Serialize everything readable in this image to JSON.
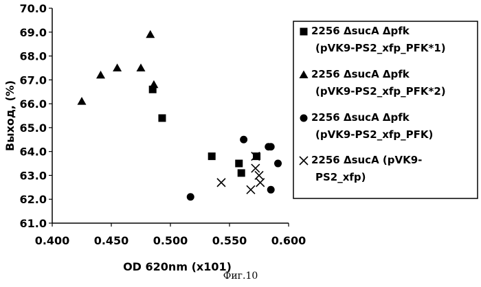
{
  "chart_data": {
    "type": "scatter",
    "xlabel": "OD 620nm (x101)",
    "ylabel": "Выход, (%)",
    "xlim": [
      0.4,
      0.6
    ],
    "ylim": [
      61.0,
      70.0
    ],
    "x_ticks": [
      "0.400",
      "0.450",
      "0.500",
      "0.550",
      "0.600"
    ],
    "y_ticks": [
      "61.0",
      "62.0",
      "63.0",
      "64.0",
      "65.0",
      "66.0",
      "67.0",
      "68.0",
      "69.0",
      "70.0"
    ],
    "grid": false,
    "legend_position": "right",
    "series": [
      {
        "name": "2256 ΔsucA Δpfk (pVK9-PS2_xfp_PFK*1)",
        "legend_lines": [
          "2256 ΔsucA Δpfk",
          "(pVK9-PS2_xfp_PFK*1)"
        ],
        "marker": "square",
        "x": [
          0.485,
          0.493,
          0.535,
          0.558,
          0.56,
          0.573
        ],
        "y": [
          66.6,
          65.4,
          63.8,
          63.5,
          63.1,
          63.8
        ]
      },
      {
        "name": "2256 ΔsucA Δpfk (pVK9-PS2_xfp_PFK*2)",
        "legend_lines": [
          "2256 ΔsucA Δpfk",
          "(pVK9-PS2_xfp_PFK*2)"
        ],
        "marker": "triangle",
        "x": [
          0.425,
          0.441,
          0.455,
          0.475,
          0.483,
          0.486
        ],
        "y": [
          66.1,
          67.2,
          67.5,
          67.5,
          68.9,
          66.8
        ]
      },
      {
        "name": "2256 ΔsucA Δpfk (pVK9-PS2_xfp_PFK)",
        "legend_lines": [
          "2256 ΔsucA Δpfk",
          "(pVK9-PS2_xfp_PFK)"
        ],
        "marker": "circle",
        "x": [
          0.517,
          0.562,
          0.583,
          0.585,
          0.585,
          0.591
        ],
        "y": [
          62.1,
          64.5,
          64.2,
          64.2,
          62.4,
          63.5
        ]
      },
      {
        "name": "2256 ΔsucA (pVK9-PS2_xfp)",
        "legend_lines": [
          "2256 ΔsucA (pVK9-",
          "PS2_xfp)"
        ],
        "marker": "cross",
        "x": [
          0.543,
          0.568,
          0.572,
          0.572,
          0.575,
          0.576
        ],
        "y": [
          62.7,
          62.4,
          63.8,
          63.3,
          63.0,
          62.7
        ]
      }
    ]
  },
  "caption": "Фиг.10"
}
